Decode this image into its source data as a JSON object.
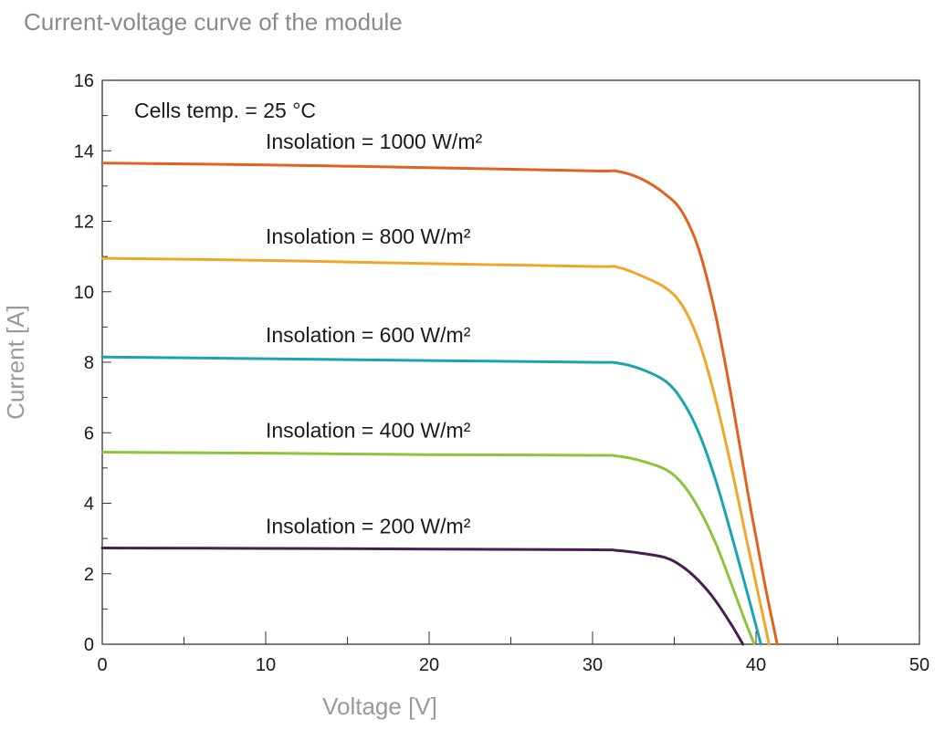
{
  "chart_data": {
    "type": "line",
    "title": "Current-voltage curve of the module",
    "xlabel": "Voltage [V]",
    "ylabel": "Current [A]",
    "xlim": [
      0,
      50
    ],
    "ylim": [
      0,
      16
    ],
    "x_ticks": [
      0,
      10,
      20,
      30,
      40,
      50
    ],
    "y_ticks": [
      0,
      2,
      4,
      6,
      8,
      10,
      12,
      14,
      16
    ],
    "grid": false,
    "annotations": [
      "Cells temp. = 25 °C"
    ],
    "series": [
      {
        "name": "Insolation = 1000 W/m²",
        "color": "#e0621f",
        "x": [
          0,
          10,
          20,
          30,
          31.5,
          33,
          34.5,
          35.5,
          36.5,
          37.5,
          38.5,
          39.5,
          40.5,
          41.3
        ],
        "y": [
          13.65,
          13.6,
          13.52,
          13.43,
          13.42,
          13.2,
          12.75,
          12.25,
          11.2,
          9.4,
          7.0,
          4.3,
          1.8,
          0
        ]
      },
      {
        "name": "Insolation = 800 W/m²",
        "color": "#f0a62a",
        "x": [
          0,
          10,
          20,
          30,
          31.5,
          33,
          34.5,
          35.5,
          36.5,
          37.5,
          38.5,
          39.5,
          40.8
        ],
        "y": [
          10.95,
          10.89,
          10.8,
          10.72,
          10.7,
          10.45,
          10.1,
          9.6,
          8.6,
          7.0,
          5.0,
          2.8,
          0
        ]
      },
      {
        "name": "Insolation = 600 W/m²",
        "color": "#1aa3b3",
        "x": [
          0,
          10,
          20,
          30,
          31.5,
          33,
          34.5,
          35.5,
          36.5,
          37.5,
          38.5,
          39.5,
          40.3
        ],
        "y": [
          8.15,
          8.1,
          8.05,
          8.0,
          7.98,
          7.8,
          7.45,
          6.9,
          6.0,
          4.7,
          3.1,
          1.4,
          0
        ]
      },
      {
        "name": "Insolation = 400 W/m²",
        "color": "#8dc43a",
        "x": [
          0,
          10,
          20,
          30,
          31.5,
          33,
          34.5,
          35.5,
          36.5,
          37.5,
          38.5,
          39.3,
          39.9
        ],
        "y": [
          5.45,
          5.42,
          5.38,
          5.36,
          5.34,
          5.2,
          4.95,
          4.55,
          3.85,
          2.9,
          1.7,
          0.7,
          0
        ]
      },
      {
        "name": "Insolation = 200 W/m²",
        "color": "#4a1d52",
        "x": [
          0,
          10,
          20,
          30,
          31.5,
          33,
          34.5,
          35.5,
          36.5,
          37.5,
          38.5,
          39.2
        ],
        "y": [
          2.73,
          2.72,
          2.7,
          2.68,
          2.66,
          2.58,
          2.45,
          2.2,
          1.8,
          1.25,
          0.55,
          0
        ]
      }
    ]
  }
}
